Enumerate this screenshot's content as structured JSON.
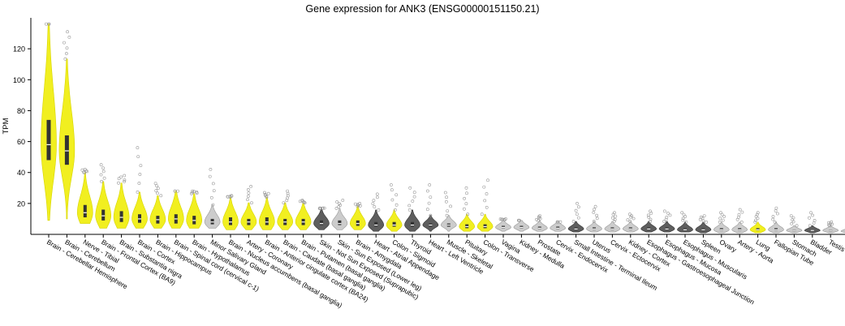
{
  "chart_data": {
    "type": "violin",
    "title": "Gene expression for ANK3 (ENSG00000151150.21)",
    "xlabel": "",
    "ylabel": "TPM",
    "ylim": [
      0,
      140
    ],
    "y_ticks": [
      20,
      40,
      60,
      80,
      100,
      120
    ],
    "grid": false,
    "legend": "none",
    "colors": {
      "yellow": "#f0ee14",
      "dark": "#555555",
      "light": "#c9c9c9",
      "box": "#333333",
      "outlier": "#999999"
    },
    "categories": [
      "Brain - Cerebellar Hemisphere",
      "Brain - Cerebellum",
      "Nerve - Tibial",
      "Brain - Frontal Cortex (BA9)",
      "Brain - Substantia nigra",
      "Brain - Cortex",
      "Brain - Hippocampus",
      "Brain - Spinal cord (cervical c-1)",
      "Brain - Hypothalamus",
      "Minor Salivary Gland",
      "Brain - Nucleus accumbens (basal ganglia)",
      "Artery - Coronary",
      "Brain - Anterior cingulate cortex (BA24)",
      "Brain - Caudate (basal ganglia)",
      "Brain - Putamen (basal ganglia)",
      "Skin - Not Sun Exposed (Suprapubic)",
      "Skin - Sun Exposed (Lower leg)",
      "Brain - Amygdala",
      "Heart - Atrial Appendage",
      "Colon - Sigmoid",
      "Thyroid",
      "Heart - Left Ventricle",
      "Muscle - Skeletal",
      "Pituitary",
      "Colon - Transverse",
      "Vagina",
      "Kidney - Medulla",
      "Prostate",
      "Cervix - Endocervix",
      "Small Intestine - Terminal Ileum",
      "Uterus",
      "Cervix - Ectocervix",
      "Kidney - Cortex",
      "Esophagus - Gastroesophageal Junction",
      "Esophagus - Mucosa",
      "Esophagus - Muscularis",
      "Spleen",
      "Ovary",
      "Artery - Aorta",
      "Lung",
      "Fallopian Tube",
      "Stomach",
      "Bladder",
      "Testis",
      "Breast - Mammary Tissue",
      "Artery - Tibial",
      "Pancreas",
      "Adipose - Visceral (Omentum)",
      "Adipose - Subcutaneous",
      "Liver",
      "Adrenal Gland",
      "Whole Blood",
      "Cells - Cultured fibroblasts",
      "Cells - EBV-transformed lymphocytes"
    ],
    "medians": [
      58,
      54,
      14,
      12,
      11,
      10,
      9.5,
      10,
      9,
      8,
      8,
      8,
      8,
      8,
      8,
      7,
      7,
      7,
      6,
      6,
      6,
      6,
      6,
      5,
      5,
      4.5,
      4.5,
      4,
      4,
      3.5,
      3.5,
      3.5,
      3.5,
      3.5,
      3.5,
      3,
      3,
      3,
      3,
      3,
      3,
      2.5,
      2.5,
      2.5,
      2,
      2,
      2,
      2,
      1.8,
      1.5,
      1.5,
      0.8,
      0.4,
      0.3
    ],
    "q1": [
      48,
      45,
      11,
      9,
      8,
      7.5,
      7,
      7,
      6.5,
      6.5,
      6,
      6,
      6,
      6,
      6,
      6,
      6,
      5.5,
      5,
      5,
      5,
      5,
      5,
      4,
      4,
      4,
      4,
      3.5,
      3.5,
      3,
      3,
      3,
      3,
      3,
      3,
      2.5,
      2.5,
      2.5,
      2.5,
      2.5,
      2.5,
      2,
      2,
      2,
      1.7,
      1.7,
      1.7,
      1.7,
      1.5,
      1.2,
      1.2,
      0.6,
      0.3,
      0.2
    ],
    "q3": [
      74,
      64,
      19,
      16,
      15,
      13,
      12,
      13,
      12,
      10,
      11,
      10,
      11,
      10,
      10,
      9,
      9,
      9,
      8,
      8,
      8,
      7,
      7,
      6.5,
      6.5,
      5.5,
      5.5,
      5,
      5,
      4.5,
      4.5,
      4.5,
      4.5,
      4.5,
      4.5,
      4,
      4,
      4,
      4,
      4,
      4,
      3,
      3,
      3,
      2.5,
      2.5,
      2.5,
      2.5,
      2.2,
      2,
      2,
      1,
      0.5,
      0.4
    ],
    "mins": [
      9,
      10,
      7,
      4,
      4,
      4,
      4,
      4,
      4,
      4,
      3,
      3,
      3,
      3,
      3,
      3,
      3,
      3,
      2,
      2,
      2,
      2,
      2,
      2,
      2,
      2,
      2,
      2,
      2,
      1.5,
      1.5,
      1.5,
      1.5,
      1.5,
      1.5,
      1.5,
      1,
      1,
      1,
      1,
      1,
      1,
      1,
      1,
      1,
      1,
      1,
      1,
      0.5,
      0.5,
      0.5,
      0.3,
      0.1,
      0.1
    ],
    "maxs": [
      136,
      131,
      42,
      45,
      38,
      56,
      33,
      28,
      28,
      42,
      25,
      31,
      27,
      28,
      22,
      17,
      22,
      20,
      26,
      32,
      30,
      32,
      27,
      30,
      35,
      10,
      9,
      12,
      8,
      20,
      18,
      14,
      13,
      15,
      15,
      14,
      12,
      14,
      16,
      14,
      17,
      12,
      14,
      8,
      6,
      6,
      6,
      8,
      8,
      6,
      9,
      4,
      1.5,
      1.2
    ],
    "colorGroups": [
      "yellow",
      "yellow",
      "yellow",
      "yellow",
      "yellow",
      "yellow",
      "yellow",
      "yellow",
      "yellow",
      "light",
      "yellow",
      "yellow",
      "yellow",
      "yellow",
      "yellow",
      "dark",
      "light",
      "yellow",
      "dark",
      "yellow",
      "dark",
      "dark",
      "light",
      "yellow",
      "yellow",
      "light",
      "light",
      "light",
      "light",
      "dark",
      "light",
      "light",
      "light",
      "dark",
      "dark",
      "dark",
      "dark",
      "light",
      "light",
      "yellow",
      "light",
      "light",
      "dark",
      "light",
      "light",
      "light",
      "light",
      "light",
      "light",
      "light",
      "light",
      "light",
      "light",
      "light"
    ]
  }
}
